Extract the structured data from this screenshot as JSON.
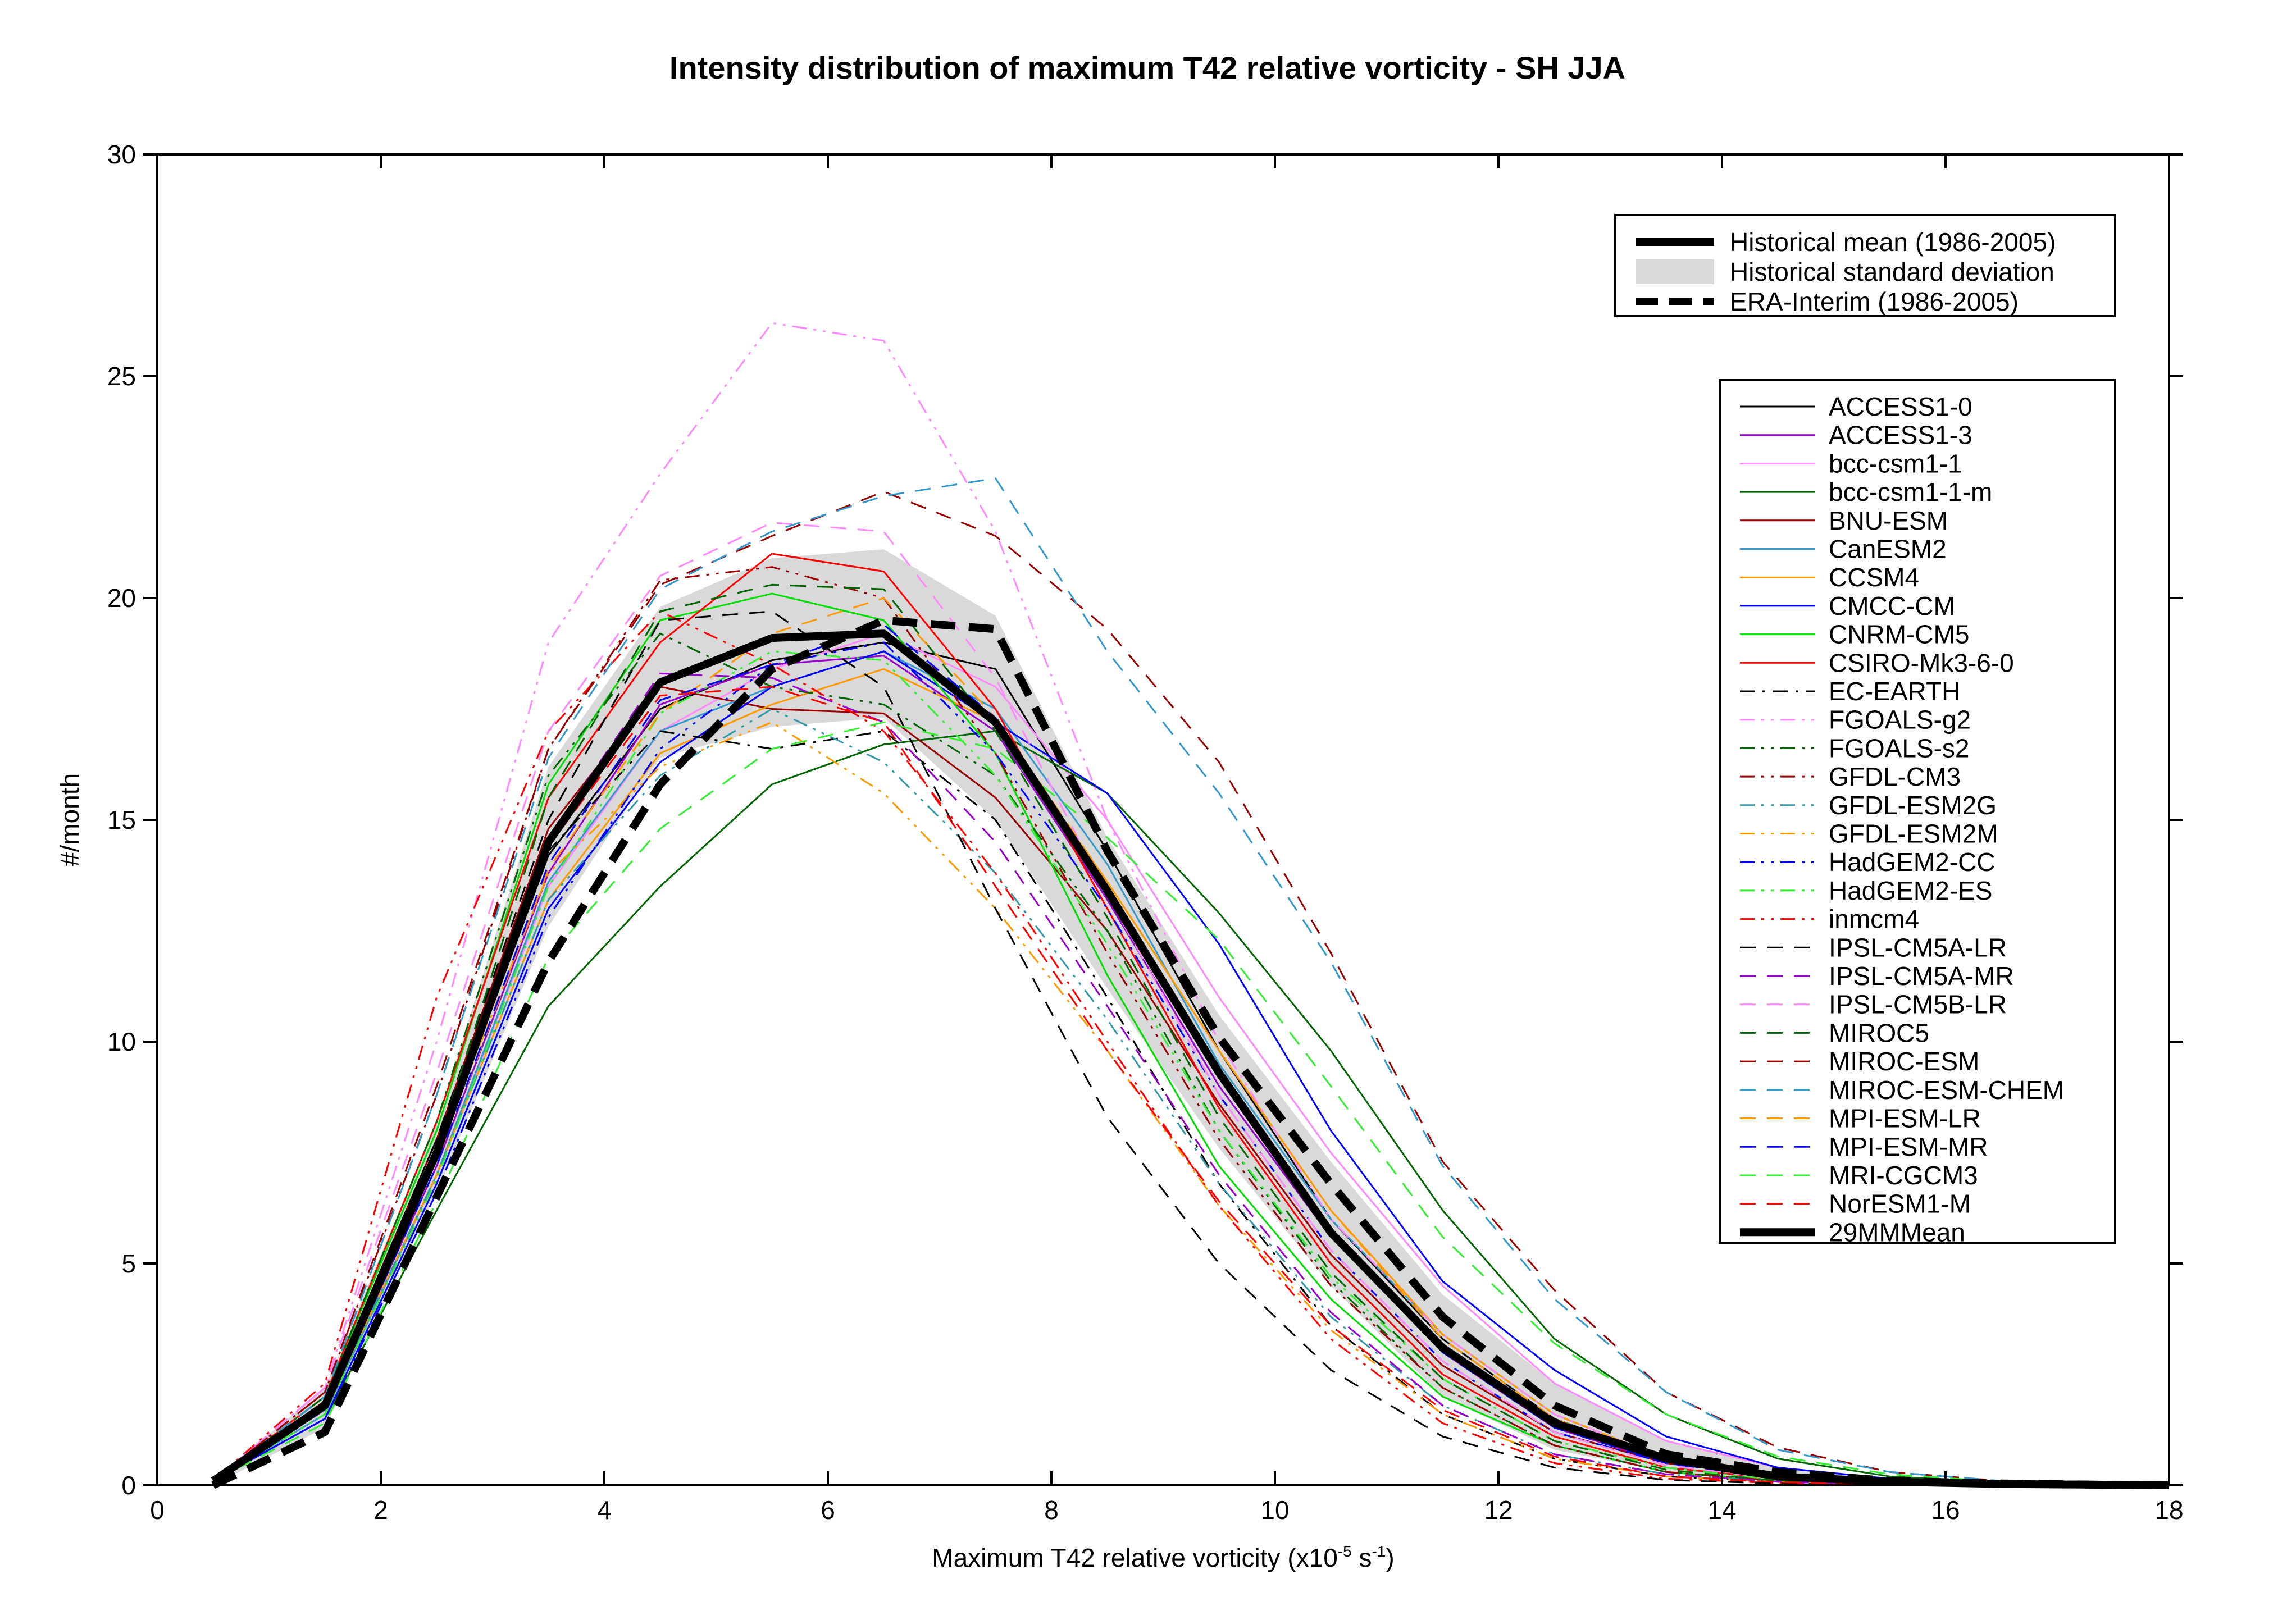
{
  "chart_data": {
    "type": "line",
    "title": "Intensity distribution of maximum T42 relative vorticity - SH JJA",
    "xlabel": "Maximum T42 relative vorticity (x10",
    "xlabel_sup1": "-5",
    "xlabel_mid": " s",
    "xlabel_sup2": "-1",
    "xlabel_end": ")",
    "ylabel": "#/month",
    "xlim": [
      0,
      18
    ],
    "ylim": [
      0,
      30
    ],
    "xticks": [
      0,
      2,
      4,
      6,
      8,
      10,
      12,
      14,
      16,
      18
    ],
    "yticks": [
      0,
      5,
      10,
      15,
      20,
      25,
      30
    ],
    "x": [
      0.5,
      1.5,
      2.5,
      3.5,
      4.5,
      5.5,
      6.5,
      7.5,
      8.5,
      9.5,
      10.5,
      11.5,
      12.5,
      13.5,
      14.5,
      15.5,
      16.5,
      17.5,
      18
    ],
    "historical_std": {
      "label": "Historical standard deviation",
      "color": "#d9d9d9",
      "upper": [
        0.1,
        2.2,
        8.2,
        16.2,
        19.8,
        20.9,
        21.1,
        19.6,
        14.6,
        10.6,
        7.3,
        4.3,
        2.3,
        1.0,
        0.4,
        0.15,
        0.05,
        0.02,
        0.01
      ],
      "lower": [
        0.0,
        1.3,
        6.6,
        12.6,
        16.4,
        17.1,
        17.3,
        15.0,
        11.2,
        7.6,
        4.5,
        2.0,
        0.8,
        0.3,
        0.1,
        0.03,
        0.0,
        0.0,
        0.0
      ]
    },
    "highlight_series": [
      {
        "name": "Historical mean (1986-2005)",
        "color": "#000000",
        "dash": "solid",
        "values": [
          0.1,
          1.8,
          7.5,
          14.5,
          18.1,
          19.1,
          19.2,
          17.2,
          13.4,
          9.3,
          5.7,
          3.1,
          1.4,
          0.6,
          0.2,
          0.08,
          0.03,
          0.01,
          0.0
        ]
      },
      {
        "name": "ERA-Interim (1986-2005)",
        "color": "#000000",
        "dash": "longdash",
        "values": [
          0.0,
          1.2,
          6.5,
          11.8,
          15.8,
          18.4,
          19.5,
          19.3,
          14.3,
          10.1,
          6.8,
          3.8,
          1.8,
          0.7,
          0.3,
          0.1,
          0.04,
          0.01,
          0.0
        ]
      }
    ],
    "legend_top": [
      {
        "label": "Historical mean (1986-2005)",
        "style": "solid-thick"
      },
      {
        "label": "Historical standard deviation",
        "style": "band"
      },
      {
        "label": "ERA-Interim (1986-2005)",
        "style": "dash-thick"
      }
    ],
    "series": [
      {
        "name": "ACCESS1-0",
        "color": "#000000",
        "dash": "solid",
        "values": [
          0.1,
          1.8,
          7.4,
          14.2,
          17.5,
          18.6,
          19.0,
          18.4,
          14.3,
          9.8,
          6.0,
          3.3,
          1.5,
          0.6,
          0.2,
          0.08,
          0.03,
          0.01,
          0.0
        ]
      },
      {
        "name": "ACCESS1-3",
        "color": "#9900cc",
        "dash": "solid",
        "values": [
          0.1,
          1.7,
          7.2,
          13.8,
          17.6,
          18.5,
          18.7,
          17.0,
          13.2,
          9.0,
          5.6,
          3.0,
          1.3,
          0.5,
          0.2,
          0.07,
          0.02,
          0.01,
          0.0
        ]
      },
      {
        "name": "bcc-csm1-1",
        "color": "#ff88ff",
        "dash": "solid",
        "values": [
          0.1,
          1.6,
          7.0,
          13.5,
          17.0,
          18.4,
          19.2,
          18.0,
          15.0,
          11.0,
          7.5,
          4.5,
          2.3,
          1.0,
          0.4,
          0.15,
          0.05,
          0.02,
          0.0
        ]
      },
      {
        "name": "bcc-csm1-1-m",
        "color": "#006600",
        "dash": "solid",
        "values": [
          0.1,
          1.5,
          6.2,
          10.8,
          13.5,
          15.8,
          16.7,
          17.0,
          15.6,
          12.9,
          9.8,
          6.2,
          3.3,
          1.6,
          0.6,
          0.2,
          0.07,
          0.02,
          0.0
        ]
      },
      {
        "name": "BNU-ESM",
        "color": "#990000",
        "dash": "solid",
        "values": [
          0.1,
          1.9,
          7.8,
          14.8,
          18.0,
          17.5,
          17.4,
          15.5,
          12.5,
          8.6,
          5.2,
          2.7,
          1.2,
          0.5,
          0.2,
          0.07,
          0.02,
          0.01,
          0.0
        ]
      },
      {
        "name": "CanESM2",
        "color": "#3399cc",
        "dash": "solid",
        "values": [
          0.1,
          1.6,
          7.0,
          13.6,
          17.0,
          18.0,
          18.8,
          17.5,
          14.0,
          9.5,
          6.0,
          3.4,
          1.6,
          0.6,
          0.2,
          0.07,
          0.02,
          0.01,
          0.0
        ]
      },
      {
        "name": "CCSM4",
        "color": "#ff9900",
        "dash": "solid",
        "values": [
          0.1,
          1.7,
          7.0,
          13.2,
          16.5,
          17.6,
          18.4,
          17.2,
          13.6,
          9.8,
          6.2,
          3.4,
          1.6,
          0.6,
          0.2,
          0.07,
          0.02,
          0.01,
          0.0
        ]
      },
      {
        "name": "CMCC-CM",
        "color": "#0000ff",
        "dash": "solid",
        "values": [
          0.1,
          1.5,
          6.8,
          13.0,
          16.3,
          18.0,
          18.8,
          17.2,
          15.6,
          12.2,
          8.0,
          4.6,
          2.6,
          1.1,
          0.4,
          0.15,
          0.05,
          0.02,
          0.0
        ]
      },
      {
        "name": "CNRM-CM5",
        "color": "#00dd00",
        "dash": "solid",
        "values": [
          0.1,
          2.0,
          8.0,
          15.8,
          19.5,
          20.1,
          19.5,
          16.5,
          11.5,
          7.2,
          4.2,
          2.0,
          0.9,
          0.3,
          0.1,
          0.03,
          0.01,
          0.0,
          0.0
        ]
      },
      {
        "name": "CSIRO-Mk3-6-0",
        "color": "#ff0000",
        "dash": "solid",
        "values": [
          0.1,
          2.0,
          8.2,
          15.5,
          19.0,
          21.0,
          20.6,
          17.5,
          13.0,
          8.5,
          5.0,
          2.5,
          1.1,
          0.4,
          0.15,
          0.05,
          0.02,
          0.0,
          0.0
        ]
      },
      {
        "name": "EC-EARTH",
        "color": "#000000",
        "dash": "dashdot",
        "values": [
          0.1,
          1.9,
          7.8,
          14.3,
          17.0,
          16.6,
          17.0,
          15.0,
          11.0,
          6.8,
          3.6,
          1.6,
          0.6,
          0.2,
          0.08,
          0.02,
          0.01,
          0.0,
          0.0
        ]
      },
      {
        "name": "FGOALS-g2",
        "color": "#ff88ff",
        "dash": "dashdotdot",
        "values": [
          0.1,
          2.2,
          10.0,
          19.0,
          22.8,
          26.2,
          25.8,
          21.5,
          15.0,
          10.0,
          6.0,
          3.4,
          1.6,
          0.6,
          0.2,
          0.07,
          0.02,
          0.01,
          0.0
        ]
      },
      {
        "name": "FGOALS-s2",
        "color": "#006600",
        "dash": "dashdotdot",
        "values": [
          0.1,
          2.0,
          8.2,
          16.0,
          19.2,
          18.0,
          17.6,
          16.0,
          12.5,
          8.0,
          4.6,
          2.2,
          0.9,
          0.3,
          0.1,
          0.03,
          0.01,
          0.0,
          0.0
        ]
      },
      {
        "name": "GFDL-CM3",
        "color": "#990000",
        "dash": "dashdotdot",
        "values": [
          0.1,
          2.1,
          8.8,
          16.6,
          20.4,
          20.7,
          20.0,
          16.5,
          12.0,
          7.8,
          4.5,
          2.2,
          0.9,
          0.3,
          0.1,
          0.03,
          0.01,
          0.0,
          0.0
        ]
      },
      {
        "name": "GFDL-ESM2G",
        "color": "#3399aa",
        "dash": "dashdotdot",
        "values": [
          0.1,
          1.7,
          7.0,
          13.2,
          16.0,
          17.5,
          16.3,
          13.8,
          10.5,
          6.8,
          3.8,
          1.8,
          0.7,
          0.25,
          0.08,
          0.02,
          0.01,
          0.0,
          0.0
        ]
      },
      {
        "name": "GFDL-ESM2M",
        "color": "#ff9900",
        "dash": "dashdotdot",
        "values": [
          0.1,
          1.8,
          7.5,
          13.8,
          16.2,
          17.2,
          15.6,
          13.0,
          9.8,
          6.3,
          3.5,
          1.6,
          0.6,
          0.2,
          0.07,
          0.02,
          0.01,
          0.0,
          0.0
        ]
      },
      {
        "name": "HadGEM2-CC",
        "color": "#0000ff",
        "dash": "dashdotdot",
        "values": [
          0.1,
          1.5,
          6.6,
          12.8,
          16.6,
          18.5,
          19.0,
          16.5,
          13.0,
          8.8,
          5.3,
          2.8,
          1.2,
          0.5,
          0.15,
          0.05,
          0.02,
          0.0,
          0.0
        ]
      },
      {
        "name": "HadGEM2-ES",
        "color": "#33ee33",
        "dash": "dashdotdot",
        "values": [
          0.1,
          1.6,
          6.9,
          13.5,
          17.4,
          18.8,
          18.6,
          16.0,
          12.2,
          8.0,
          4.7,
          2.4,
          1.0,
          0.4,
          0.12,
          0.04,
          0.01,
          0.0,
          0.0
        ]
      },
      {
        "name": "inmcm4",
        "color": "#ff0000",
        "dash": "dashdotdot",
        "values": [
          0.1,
          2.3,
          11.0,
          17.0,
          19.7,
          18.5,
          17.0,
          13.8,
          10.0,
          6.3,
          3.3,
          1.4,
          0.5,
          0.15,
          0.05,
          0.01,
          0.0,
          0.0,
          0.0
        ]
      },
      {
        "name": "IPSL-CM5A-LR",
        "color": "#000000",
        "dash": "dash",
        "values": [
          0.1,
          1.9,
          7.8,
          15.0,
          19.5,
          19.7,
          18.0,
          13.0,
          8.3,
          5.0,
          2.6,
          1.1,
          0.4,
          0.12,
          0.04,
          0.01,
          0.0,
          0.0,
          0.0
        ]
      },
      {
        "name": "IPSL-CM5A-MR",
        "color": "#9900cc",
        "dash": "dash",
        "values": [
          0.1,
          1.8,
          7.5,
          14.6,
          18.3,
          18.2,
          17.2,
          14.5,
          10.8,
          7.0,
          3.9,
          1.8,
          0.7,
          0.25,
          0.08,
          0.02,
          0.0,
          0.0,
          0.0
        ]
      },
      {
        "name": "IPSL-CM5B-LR",
        "color": "#ff88ff",
        "dash": "dash",
        "values": [
          0.1,
          2.2,
          9.3,
          17.0,
          20.5,
          21.7,
          21.5,
          18.2,
          13.3,
          8.8,
          5.3,
          2.8,
          1.2,
          0.45,
          0.15,
          0.05,
          0.02,
          0.0,
          0.0
        ]
      },
      {
        "name": "MIROC5",
        "color": "#006600",
        "dash": "dash",
        "values": [
          0.1,
          1.9,
          7.6,
          15.5,
          19.7,
          20.3,
          20.2,
          17.0,
          12.8,
          8.3,
          4.8,
          2.4,
          1.0,
          0.35,
          0.1,
          0.03,
          0.01,
          0.0,
          0.0
        ]
      },
      {
        "name": "MIROC-ESM",
        "color": "#990000",
        "dash": "dash",
        "values": [
          0.1,
          2.1,
          9.0,
          16.6,
          20.3,
          21.4,
          22.4,
          21.4,
          19.3,
          16.3,
          12.0,
          7.3,
          4.4,
          2.1,
          0.85,
          0.3,
          0.1,
          0.03,
          0.0
        ]
      },
      {
        "name": "MIROC-ESM-CHEM",
        "color": "#3399cc",
        "dash": "dash",
        "values": [
          0.1,
          2.0,
          8.8,
          16.4,
          20.2,
          21.5,
          22.3,
          22.7,
          18.8,
          15.6,
          11.8,
          7.2,
          4.2,
          2.1,
          0.8,
          0.3,
          0.1,
          0.03,
          0.0
        ]
      },
      {
        "name": "MPI-ESM-LR",
        "color": "#ff9900",
        "dash": "dash",
        "values": [
          0.1,
          1.7,
          7.2,
          13.9,
          17.4,
          19.2,
          20.0,
          17.3,
          13.6,
          9.8,
          6.2,
          3.3,
          1.5,
          0.55,
          0.2,
          0.06,
          0.02,
          0.0,
          0.0
        ]
      },
      {
        "name": "MPI-ESM-MR",
        "color": "#0000ff",
        "dash": "dash",
        "values": [
          0.1,
          1.7,
          7.2,
          14.0,
          17.7,
          18.5,
          19.4,
          17.3,
          13.3,
          9.2,
          5.8,
          3.0,
          1.3,
          0.5,
          0.16,
          0.05,
          0.02,
          0.0,
          0.0
        ]
      },
      {
        "name": "MRI-CGCM3",
        "color": "#33ee33",
        "dash": "dash",
        "values": [
          0.1,
          1.4,
          6.4,
          11.9,
          14.8,
          16.6,
          17.2,
          16.6,
          14.6,
          12.3,
          9.0,
          5.6,
          3.2,
          1.6,
          0.65,
          0.25,
          0.08,
          0.02,
          0.0
        ]
      },
      {
        "name": "NorESM1-M",
        "color": "#ff0000",
        "dash": "dash",
        "values": [
          0.1,
          1.8,
          7.4,
          14.4,
          17.8,
          18.0,
          17.2,
          13.5,
          9.8,
          6.4,
          3.6,
          1.7,
          0.65,
          0.2,
          0.07,
          0.02,
          0.0,
          0.0,
          0.0
        ]
      },
      {
        "name": "29MMMean",
        "color": "#000000",
        "dash": "solid-thick",
        "values": [
          0.1,
          1.8,
          7.5,
          14.5,
          18.1,
          19.1,
          19.2,
          17.2,
          13.4,
          9.3,
          5.7,
          3.1,
          1.4,
          0.6,
          0.2,
          0.08,
          0.03,
          0.01,
          0.0
        ]
      }
    ]
  }
}
